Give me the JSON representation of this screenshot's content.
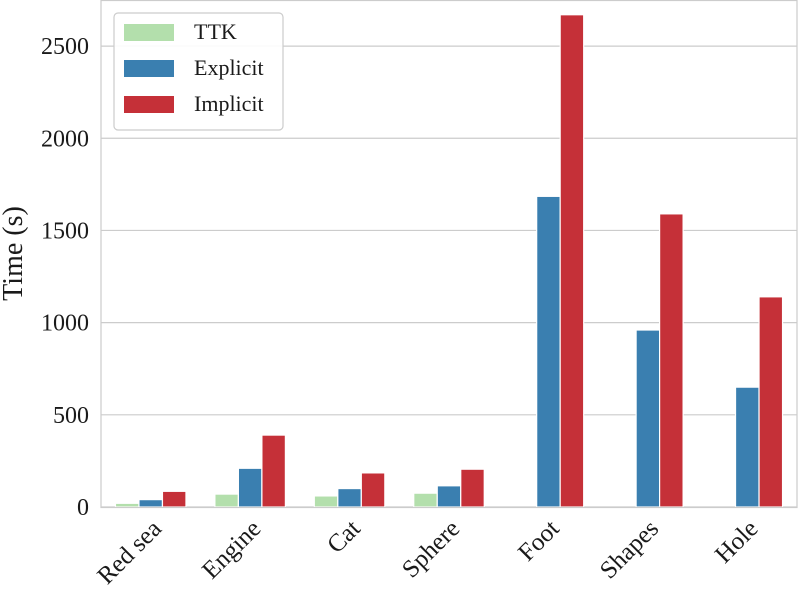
{
  "chart_data": {
    "type": "bar",
    "ylabel": "Time (s)",
    "ylim": [
      0,
      2750
    ],
    "yticks": [
      0,
      500,
      1000,
      1500,
      2000,
      2500
    ],
    "grid": "horizontal",
    "legend_position": "top-left",
    "categories": [
      "Red sea",
      "Engine",
      "Cat",
      "Sphere",
      "Foot",
      "Shapes",
      "Hole"
    ],
    "series": [
      {
        "name": "TTK",
        "color": "#b3dfac",
        "values": [
          20,
          70,
          60,
          75,
          null,
          null,
          null
        ]
      },
      {
        "name": "Explicit",
        "color": "#3a7fb0",
        "values": [
          40,
          210,
          100,
          115,
          1685,
          960,
          650
        ]
      },
      {
        "name": "Implicit",
        "color": "#c53038",
        "values": [
          85,
          390,
          185,
          205,
          2670,
          1590,
          1140
        ]
      }
    ]
  }
}
